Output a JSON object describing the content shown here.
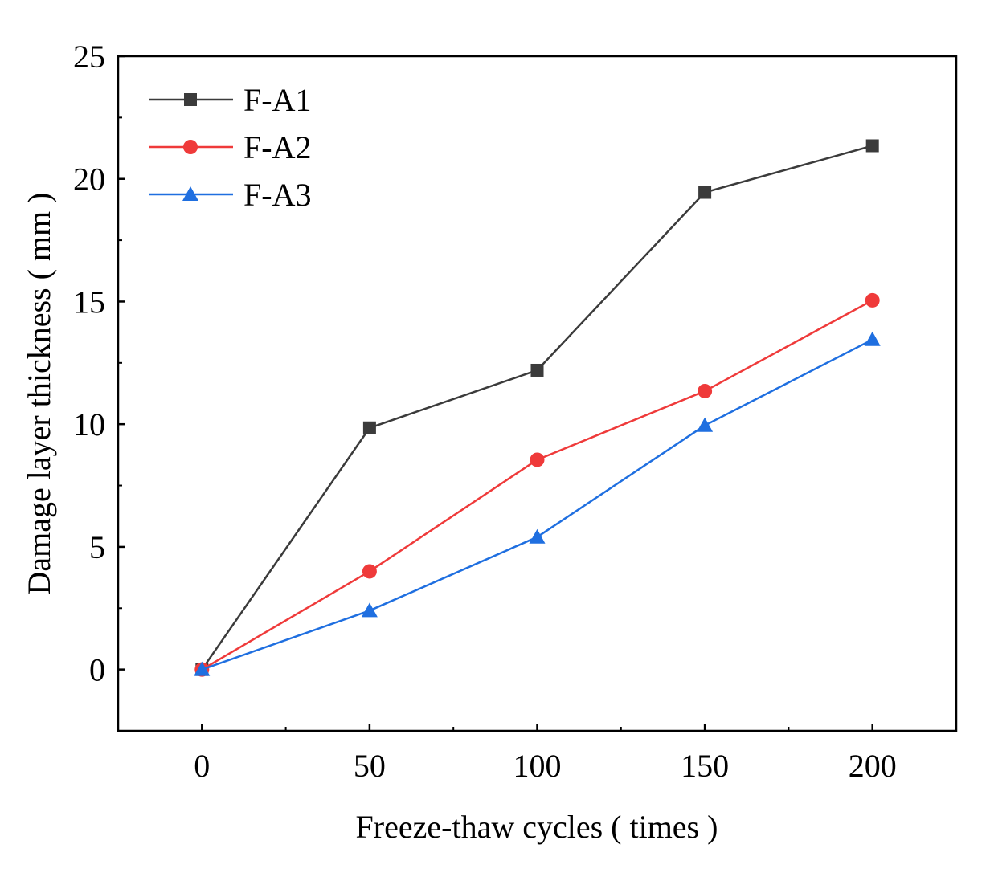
{
  "chart_data": {
    "type": "line",
    "title": "",
    "xlabel": "Freeze-thaw cycles ( times )",
    "ylabel": "Damage layer thickness ( mm )",
    "x": [
      0,
      50,
      100,
      150,
      200
    ],
    "xlim": [
      -25,
      225
    ],
    "ylim": [
      -2.5,
      25
    ],
    "xticks": [
      0,
      50,
      100,
      150,
      200
    ],
    "yticks": [
      0,
      5,
      10,
      15,
      20,
      25
    ],
    "grid": false,
    "legend_position": "top-left",
    "series": [
      {
        "name": "F-A1",
        "color": "#3b3b3b",
        "marker": "square",
        "values": [
          0,
          9.85,
          12.2,
          19.45,
          21.35
        ]
      },
      {
        "name": "F-A2",
        "color": "#ef3a3a",
        "marker": "circle",
        "values": [
          0,
          4.0,
          8.55,
          11.35,
          15.05
        ]
      },
      {
        "name": "F-A3",
        "color": "#1f6fe0",
        "marker": "triangle",
        "values": [
          0,
          2.4,
          5.4,
          9.95,
          13.45
        ]
      }
    ]
  }
}
